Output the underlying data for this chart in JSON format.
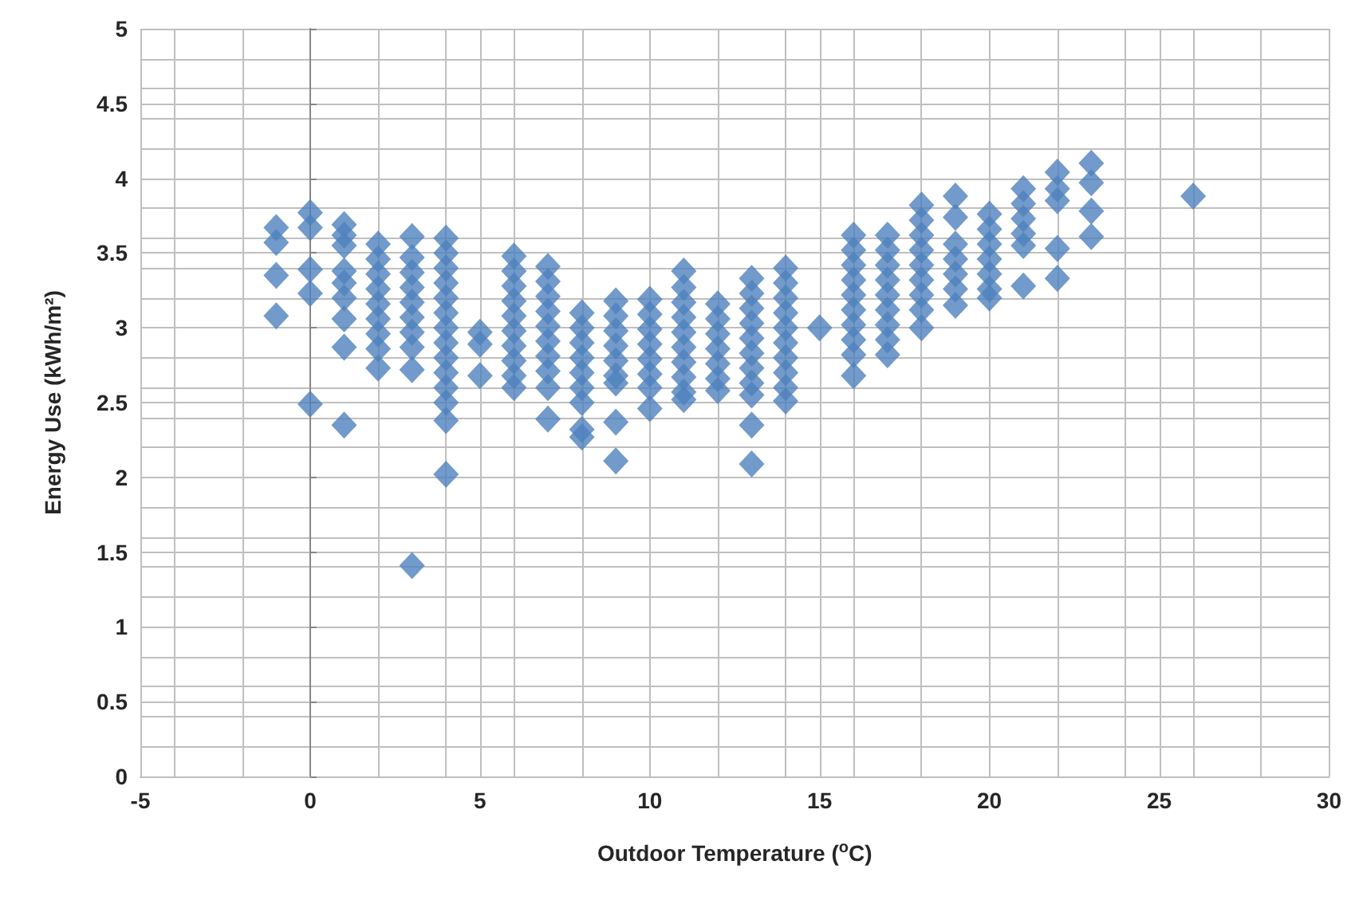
{
  "chart_data": {
    "type": "scatter",
    "xlabel": "Outdoor Temperature ($^{o}$C)",
    "ylabel": "Energy Use (kWh/m²)",
    "xlim": [
      -5,
      30
    ],
    "xticks": [
      -5,
      0,
      5,
      10,
      15,
      20,
      25,
      30
    ],
    "ylim": [
      0,
      5
    ],
    "yticks": [
      0,
      0.5,
      1,
      1.5,
      2,
      2.5,
      3,
      3.5,
      4,
      4.5,
      5
    ],
    "grid": true,
    "marker": "diamond",
    "series": [
      {
        "color": "#4f81bd",
        "x": [
          -1,
          -1,
          -1,
          -1,
          0,
          0,
          0,
          0,
          0,
          1,
          1,
          1,
          1,
          1,
          1,
          1,
          1,
          1,
          2,
          2,
          2,
          2,
          2,
          2,
          2,
          2,
          2,
          3,
          3,
          3,
          3,
          3,
          3,
          3,
          3,
          3,
          3,
          4,
          4,
          4,
          4,
          4,
          4,
          4,
          4,
          4,
          4,
          4,
          4,
          4,
          4,
          5,
          5,
          5,
          6,
          6,
          6,
          6,
          6,
          6,
          6,
          6,
          6,
          6,
          7,
          7,
          7,
          7,
          7,
          7,
          7,
          7,
          7,
          7,
          8,
          8,
          8,
          8,
          8,
          8,
          8,
          8,
          8,
          9,
          9,
          9,
          9,
          9,
          9,
          9,
          9,
          9,
          10,
          10,
          10,
          10,
          10,
          10,
          10,
          10,
          11,
          11,
          11,
          11,
          11,
          11,
          11,
          11,
          11,
          11,
          12,
          12,
          12,
          12,
          12,
          12,
          12,
          13,
          13,
          13,
          13,
          13,
          13,
          13,
          13,
          13,
          13,
          13,
          14,
          14,
          14,
          14,
          14,
          14,
          14,
          14,
          14,
          14,
          15,
          16,
          16,
          16,
          16,
          16,
          16,
          16,
          16,
          16,
          16,
          17,
          17,
          17,
          17,
          17,
          17,
          17,
          17,
          17,
          18,
          18,
          18,
          18,
          18,
          18,
          18,
          18,
          18,
          19,
          19,
          19,
          19,
          19,
          19,
          19,
          20,
          20,
          20,
          20,
          20,
          20,
          20,
          21,
          21,
          21,
          21,
          21,
          21,
          22,
          22,
          22,
          22,
          22,
          23,
          23,
          23,
          23,
          26
        ],
        "values": [
          3.67,
          3.57,
          3.35,
          3.08,
          3.77,
          3.67,
          3.39,
          3.23,
          2.49,
          3.69,
          3.62,
          3.55,
          3.38,
          3.3,
          3.2,
          3.06,
          2.87,
          2.35,
          3.56,
          3.46,
          3.36,
          3.26,
          3.16,
          3.06,
          2.96,
          2.86,
          2.73,
          3.61,
          3.47,
          3.37,
          3.27,
          3.17,
          3.07,
          2.97,
          2.87,
          2.72,
          1.41,
          3.6,
          3.5,
          3.4,
          3.3,
          3.2,
          3.1,
          3.0,
          2.9,
          2.8,
          2.7,
          2.6,
          2.5,
          2.38,
          2.02,
          2.97,
          2.89,
          2.68,
          3.48,
          3.38,
          3.28,
          3.18,
          3.08,
          2.98,
          2.88,
          2.78,
          2.68,
          2.6,
          3.41,
          3.31,
          3.21,
          3.11,
          3.01,
          2.91,
          2.81,
          2.71,
          2.6,
          2.39,
          3.1,
          3.0,
          2.9,
          2.8,
          2.7,
          2.6,
          2.5,
          2.32,
          2.27,
          3.18,
          3.08,
          2.98,
          2.88,
          2.78,
          2.68,
          2.63,
          2.37,
          2.11,
          3.19,
          3.09,
          2.99,
          2.89,
          2.79,
          2.69,
          2.6,
          2.46,
          3.38,
          3.27,
          3.17,
          3.07,
          2.97,
          2.87,
          2.77,
          2.67,
          2.57,
          2.52,
          3.16,
          3.06,
          2.96,
          2.86,
          2.76,
          2.66,
          2.58,
          3.33,
          3.23,
          3.13,
          3.03,
          2.93,
          2.83,
          2.73,
          2.63,
          2.55,
          2.35,
          2.09,
          3.4,
          3.3,
          3.2,
          3.1,
          3.0,
          2.9,
          2.8,
          2.7,
          2.6,
          2.51,
          3.0,
          3.62,
          3.52,
          3.42,
          3.32,
          3.22,
          3.12,
          3.02,
          2.92,
          2.82,
          2.68,
          3.62,
          3.52,
          3.42,
          3.32,
          3.22,
          3.12,
          3.02,
          2.92,
          2.82,
          3.82,
          3.72,
          3.62,
          3.52,
          3.42,
          3.32,
          3.22,
          3.12,
          3.0,
          3.88,
          3.74,
          3.56,
          3.46,
          3.36,
          3.26,
          3.15,
          3.76,
          3.66,
          3.56,
          3.46,
          3.36,
          3.26,
          3.2,
          3.93,
          3.83,
          3.73,
          3.63,
          3.55,
          3.28,
          4.04,
          3.93,
          3.85,
          3.53,
          3.33,
          4.1,
          3.97,
          3.78,
          3.61,
          3.88
        ]
      }
    ]
  }
}
